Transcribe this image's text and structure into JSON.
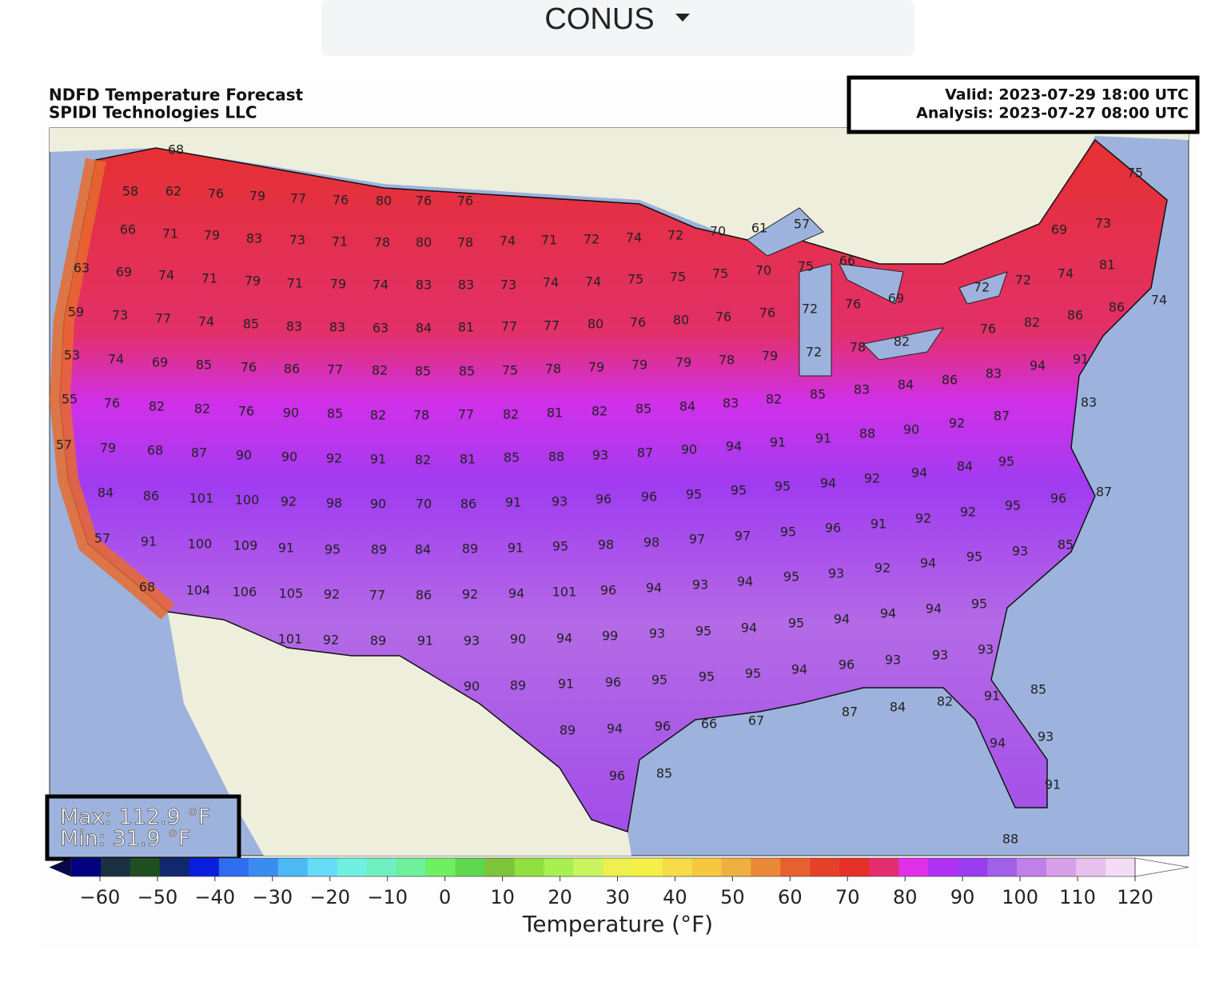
{
  "header": {
    "dropdown": "CONUS"
  },
  "map": {
    "title": "NDFD Temperature Forecast",
    "subtitle": "SPIDI Technologies LLC",
    "valid": "Valid: 2023-07-29 18:00 UTC",
    "analysis": "Analysis: 2023-07-27 08:00 UTC",
    "max": "Max: 112.9 °F",
    "min": "Min: 31.9 °F",
    "temperature_labels": [
      68,
      58,
      62,
      76,
      79,
      77,
      76,
      80,
      76,
      76,
      66,
      71,
      79,
      83,
      73,
      71,
      78,
      80,
      78,
      74,
      71,
      72,
      74,
      72,
      70,
      61,
      57,
      69,
      73,
      75,
      63,
      69,
      74,
      71,
      79,
      71,
      79,
      74,
      83,
      83,
      73,
      74,
      74,
      75,
      75,
      75,
      70,
      75,
      66,
      74,
      72,
      72,
      81,
      59,
      73,
      77,
      74,
      85,
      83,
      83,
      63,
      84,
      81,
      77,
      77,
      80,
      76,
      80,
      76,
      76,
      72,
      76,
      69,
      86,
      86,
      74,
      76,
      82,
      53,
      74,
      69,
      85,
      76,
      86,
      77,
      82,
      85,
      85,
      75,
      78,
      79,
      79,
      79,
      78,
      79,
      72,
      78,
      82,
      91,
      83,
      94,
      55,
      76,
      82,
      82,
      76,
      90,
      85,
      82,
      78,
      77,
      82,
      81,
      82,
      85,
      84,
      83,
      82,
      85,
      83,
      84,
      86,
      83,
      90,
      92,
      87,
      91,
      88,
      57,
      79,
      68,
      87,
      90,
      90,
      92,
      91,
      82,
      81,
      85,
      88,
      93,
      87,
      90,
      94,
      91,
      95,
      84,
      94,
      92,
      94,
      84,
      86,
      101,
      100,
      92,
      98,
      90,
      70,
      86,
      91,
      93,
      96,
      96,
      95,
      95,
      95,
      87,
      96,
      95,
      92,
      92,
      91,
      96,
      95,
      57,
      91,
      100,
      109,
      91,
      95,
      89,
      84,
      89,
      91,
      95,
      98,
      98,
      97,
      97,
      85,
      93,
      95,
      94,
      92,
      93,
      95,
      68,
      104,
      106,
      105,
      92,
      77,
      86,
      92,
      94,
      101,
      96,
      94,
      93,
      94,
      95,
      94,
      94,
      94,
      95,
      101,
      92,
      89,
      91,
      93,
      90,
      94,
      99,
      93,
      95,
      94,
      93,
      93,
      96,
      94,
      93,
      90,
      89,
      91,
      96,
      95,
      95,
      95,
      85,
      91,
      82,
      84,
      87,
      89,
      94,
      96,
      66,
      67,
      93,
      94,
      96,
      85,
      91,
      88
    ]
  },
  "colorbar": {
    "label": "Temperature (°F)",
    "clim": [
      -65,
      120
    ],
    "ticks": [
      {
        "value": -60,
        "label": "−60"
      },
      {
        "value": -50,
        "label": "−50"
      },
      {
        "value": -40,
        "label": "−40"
      },
      {
        "value": -30,
        "label": "−30"
      },
      {
        "value": -20,
        "label": "−20"
      },
      {
        "value": -10,
        "label": "−10"
      },
      0,
      10,
      20,
      30,
      40,
      50,
      60,
      70,
      80,
      90,
      100,
      110,
      120
    ],
    "colors": [
      "#08084a",
      "#000080",
      "#1a3040",
      "#1f4f20",
      "#10286e",
      "#0a1ee0",
      "#2e6cf0",
      "#3a8cf0",
      "#4cb8f5",
      "#66dcf7",
      "#70f0e0",
      "#70f0c0",
      "#6cf09a",
      "#6ff060",
      "#5fd850",
      "#7ec43a",
      "#90e040",
      "#a8ef50",
      "#c8f560",
      "#eef050",
      "#f5f048",
      "#f5dc48",
      "#f5c840",
      "#eeb040",
      "#ea8838",
      "#e8602e",
      "#e54028",
      "#e63028",
      "#e52e6e",
      "#e030e8",
      "#b030f5",
      "#9a3cf0",
      "#a060e8",
      "#c080e8",
      "#d8a0e8",
      "#e8c0ee",
      "#f4dcf6",
      "#ffffff"
    ]
  }
}
